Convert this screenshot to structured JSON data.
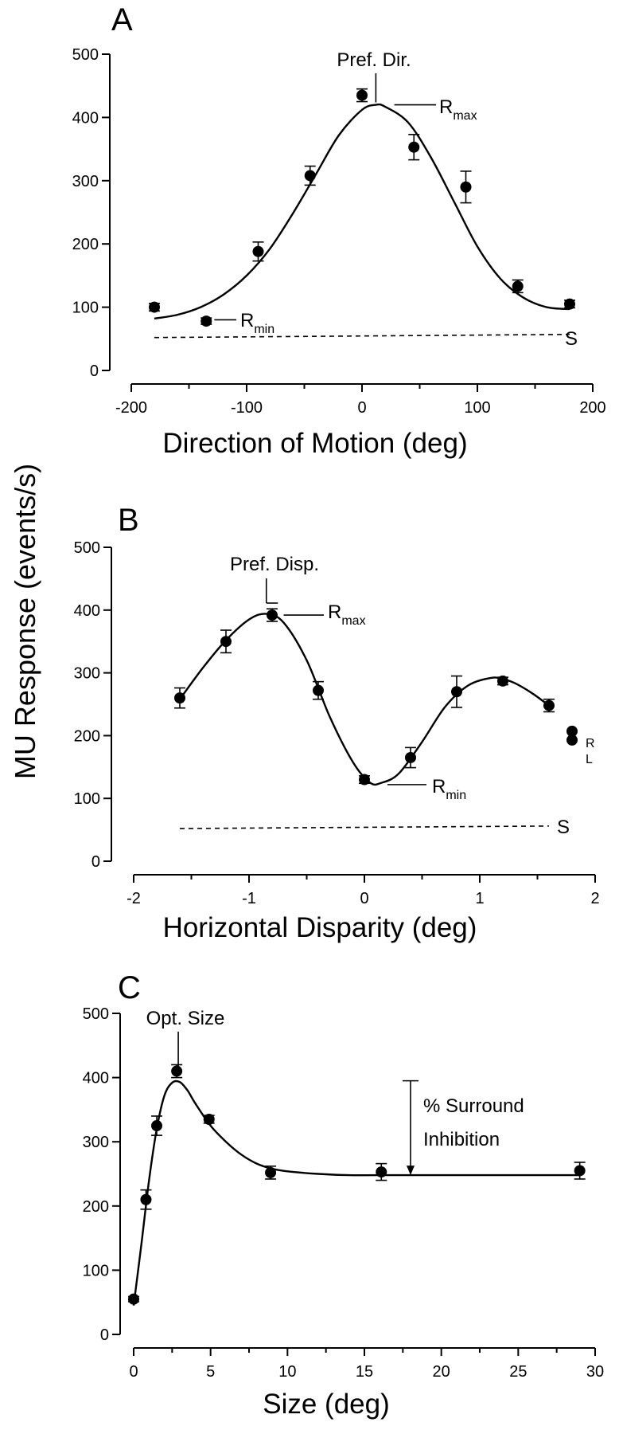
{
  "ylabel": "MU Response (events/s)",
  "chart_data": [
    {
      "panel_label": "A",
      "type": "line",
      "xlabel": "Direction of Motion (deg)",
      "xlim": [
        -200,
        200
      ],
      "ylim": [
        0,
        500
      ],
      "xticks": [
        -200,
        -100,
        0,
        100,
        200
      ],
      "yticks": [
        0,
        100,
        200,
        300,
        400,
        500
      ],
      "grid": false,
      "points": [
        {
          "x": -180,
          "y": 100,
          "err": 6
        },
        {
          "x": -135,
          "y": 78,
          "err": 5
        },
        {
          "x": -90,
          "y": 188,
          "err": 15
        },
        {
          "x": -45,
          "y": 308,
          "err": 15
        },
        {
          "x": 0,
          "y": 435,
          "err": 10
        },
        {
          "x": 45,
          "y": 353,
          "err": 20
        },
        {
          "x": 90,
          "y": 290,
          "err": 25
        },
        {
          "x": 135,
          "y": 133,
          "err": 10
        },
        {
          "x": 180,
          "y": 105,
          "err": 6
        }
      ],
      "fit": {
        "x": [
          -180,
          -160,
          -140,
          -120,
          -100,
          -80,
          -60,
          -40,
          -20,
          0,
          12,
          20,
          40,
          60,
          80,
          100,
          120,
          140,
          160,
          180
        ],
        "y": [
          82,
          88,
          100,
          120,
          150,
          192,
          248,
          310,
          372,
          412,
          420,
          417,
          392,
          336,
          266,
          196,
          145,
          115,
          100,
          97
        ]
      },
      "baseline": {
        "x": [
          -180,
          180
        ],
        "y": [
          52,
          57
        ],
        "label": "S"
      },
      "annotations": {
        "pref": "Pref. Dir.",
        "rmax_main": "R",
        "rmax_sub": "max",
        "rmin_main": "R",
        "rmin_sub": "min"
      }
    },
    {
      "panel_label": "B",
      "type": "line",
      "xlabel": "Horizontal Disparity (deg)",
      "xlim": [
        -2,
        2
      ],
      "ylim": [
        0,
        500
      ],
      "xticks": [
        -2,
        -1,
        0,
        1,
        2
      ],
      "yticks": [
        0,
        100,
        200,
        300,
        400,
        500
      ],
      "grid": false,
      "points": [
        {
          "x": -1.6,
          "y": 260,
          "err": 16
        },
        {
          "x": -1.2,
          "y": 350,
          "err": 18
        },
        {
          "x": -0.8,
          "y": 392,
          "err": 10
        },
        {
          "x": -0.4,
          "y": 272,
          "err": 14
        },
        {
          "x": 0.0,
          "y": 130,
          "err": 6
        },
        {
          "x": 0.4,
          "y": 165,
          "err": 16
        },
        {
          "x": 0.8,
          "y": 270,
          "err": 25
        },
        {
          "x": 1.2,
          "y": 287,
          "err": 6
        },
        {
          "x": 1.6,
          "y": 248,
          "err": 10
        }
      ],
      "fit": {
        "x": [
          -1.6,
          -1.4,
          -1.2,
          -1.0,
          -0.85,
          -0.7,
          -0.5,
          -0.3,
          -0.1,
          0.05,
          0.15,
          0.3,
          0.5,
          0.7,
          0.9,
          1.1,
          1.2,
          1.3,
          1.45,
          1.6
        ],
        "y": [
          258,
          308,
          352,
          385,
          394,
          380,
          320,
          230,
          158,
          125,
          125,
          140,
          190,
          246,
          280,
          292,
          290,
          284,
          268,
          248
        ]
      },
      "extra_points": [
        {
          "x": 1.8,
          "y": 207
        },
        {
          "x": 1.8,
          "y": 193
        }
      ],
      "extra_labels": [
        "R",
        "L"
      ],
      "baseline": {
        "x": [
          -1.6,
          1.6
        ],
        "y": [
          52,
          56
        ],
        "label": "S"
      },
      "annotations": {
        "pref": "Pref. Disp.",
        "rmax_main": "R",
        "rmax_sub": "max",
        "rmin_main": "R",
        "rmin_sub": "min"
      }
    },
    {
      "panel_label": "C",
      "type": "line",
      "xlabel": "Size (deg)",
      "xlim": [
        0,
        30
      ],
      "ylim": [
        0,
        500
      ],
      "xticks": [
        0,
        5,
        10,
        15,
        20,
        25,
        30
      ],
      "yticks": [
        0,
        100,
        200,
        300,
        400,
        500
      ],
      "grid": false,
      "points": [
        {
          "x": 0,
          "y": 55,
          "err": 4
        },
        {
          "x": 0.8,
          "y": 210,
          "err": 15
        },
        {
          "x": 1.5,
          "y": 325,
          "err": 15
        },
        {
          "x": 2.8,
          "y": 410,
          "err": 10
        },
        {
          "x": 4.9,
          "y": 335,
          "err": 6
        },
        {
          "x": 8.9,
          "y": 252,
          "err": 10
        },
        {
          "x": 16.1,
          "y": 253,
          "err": 13
        },
        {
          "x": 29,
          "y": 255,
          "err": 13
        }
      ],
      "fit": {
        "x": [
          0,
          0.5,
          1,
          1.5,
          2,
          2.5,
          3,
          3.5,
          4,
          5,
          6,
          7,
          8,
          9,
          10,
          12,
          14,
          16,
          20,
          25,
          29
        ],
        "y": [
          45,
          140,
          240,
          320,
          372,
          392,
          393,
          380,
          360,
          325,
          300,
          280,
          266,
          258,
          254,
          250,
          248,
          248,
          248,
          248,
          248
        ]
      },
      "inhibition_arrow": {
        "x": 18,
        "y_top": 395,
        "y_bottom": 248
      },
      "annotations": {
        "opt": "Opt. Size",
        "surround_line1": "% Surround",
        "surround_line2": "Inhibition"
      }
    }
  ]
}
